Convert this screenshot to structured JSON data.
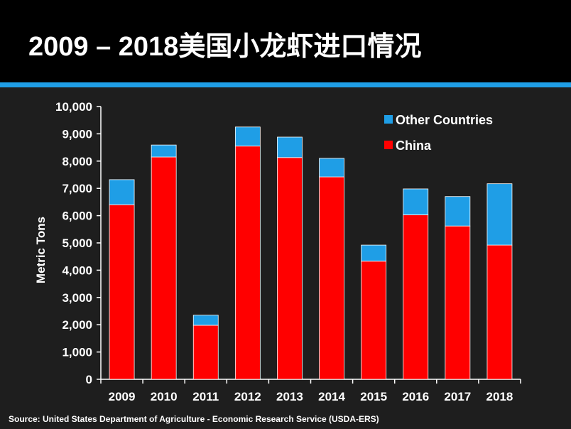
{
  "slide": {
    "title": "2009 – 2018美国小龙虾进口情况",
    "source": "Source:  United States Department of Agriculture - Economic Research Service (USDA-ERS)"
  },
  "colors": {
    "china": "#ff0000",
    "other": "#1f9ee6",
    "accent": "#1f9ee6"
  },
  "chart_data": {
    "type": "bar",
    "stacked": true,
    "categories": [
      "2009",
      "2010",
      "2011",
      "2012",
      "2013",
      "2014",
      "2015",
      "2016",
      "2017",
      "2018"
    ],
    "series": [
      {
        "name": "China",
        "values": [
          6400,
          8150,
          1980,
          8550,
          8130,
          7420,
          4330,
          6030,
          5620,
          4920
        ]
      },
      {
        "name": "Other Countries",
        "values": [
          920,
          440,
          370,
          700,
          750,
          680,
          590,
          950,
          1080,
          2250
        ]
      }
    ],
    "ylabel": "Metric Tons",
    "xlabel": "",
    "ylim": [
      0,
      10000
    ],
    "yticks": [
      0,
      1000,
      2000,
      3000,
      4000,
      5000,
      6000,
      7000,
      8000,
      9000,
      10000
    ],
    "ytick_labels": [
      "0",
      "1,000",
      "2,000",
      "3,000",
      "4,000",
      "5,000",
      "6,000",
      "7,000",
      "8,000",
      "9,000",
      "10,000"
    ],
    "legend": [
      "Other Countries",
      "China"
    ],
    "legend_position": "top-right",
    "grid": false
  }
}
